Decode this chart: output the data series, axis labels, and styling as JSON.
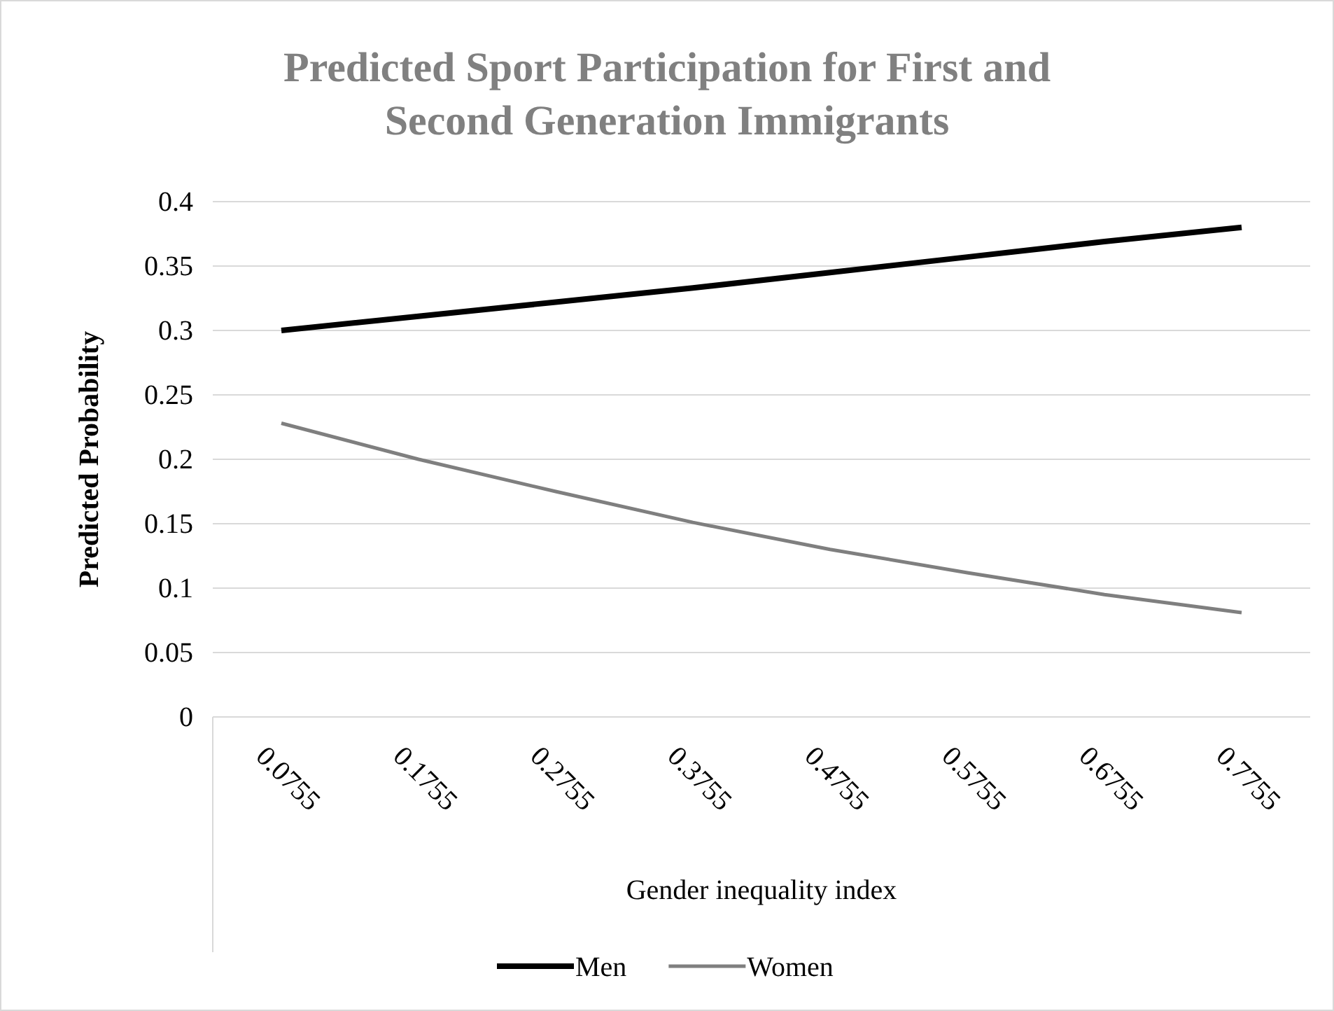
{
  "chart_data": {
    "type": "line",
    "title": "Predicted Sport Participation for First and Second Generation Immigrants",
    "xlabel": "Gender inequality index",
    "ylabel": "Predicted Probability",
    "categories": [
      "0.0755",
      "0.1755",
      "0.2755",
      "0.3755",
      "0.4755",
      "0.5755",
      "0.6755",
      "0.7755"
    ],
    "series": [
      {
        "name": "Men",
        "color": "#000000",
        "values": [
          0.3,
          0.311,
          0.322,
          0.333,
          0.345,
          0.357,
          0.369,
          0.38
        ]
      },
      {
        "name": "Women",
        "color": "#7f7f7f",
        "values": [
          0.228,
          0.2,
          0.175,
          0.151,
          0.13,
          0.112,
          0.095,
          0.081
        ]
      }
    ],
    "ylim": [
      0,
      0.4
    ],
    "yticks": [
      0,
      0.05,
      0.1,
      0.15,
      0.2,
      0.25,
      0.3,
      0.35,
      0.4
    ],
    "grid": "y",
    "legend": "bottom",
    "marker": "none",
    "line_style": "solid"
  }
}
